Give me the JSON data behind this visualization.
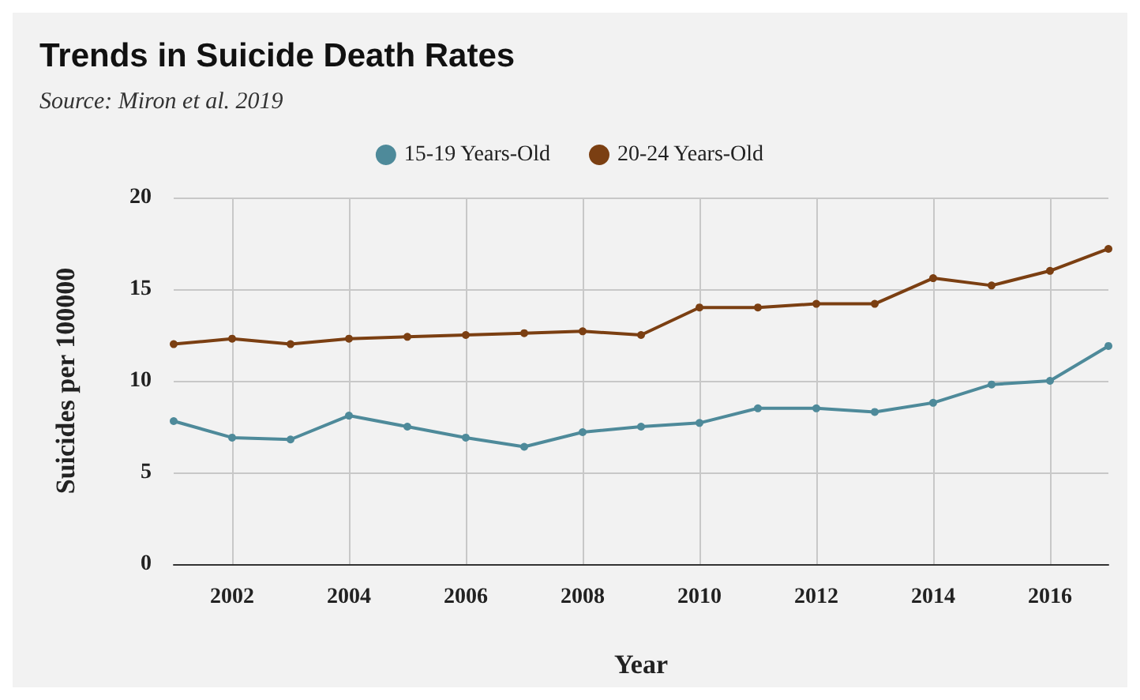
{
  "chart_data": {
    "type": "line",
    "title": "Trends in Suicide Death Rates",
    "subtitle": "Source: Miron et al. 2019",
    "xlabel": "Year",
    "ylabel": "Suicides per 100000",
    "x": [
      2001,
      2002,
      2003,
      2004,
      2005,
      2006,
      2007,
      2008,
      2009,
      2010,
      2011,
      2012,
      2013,
      2014,
      2015,
      2016,
      2017
    ],
    "series": [
      {
        "name": "15-19 Years-Old",
        "color": "#4e8a9a",
        "values": [
          7.8,
          6.9,
          6.8,
          8.1,
          7.5,
          6.9,
          6.4,
          7.2,
          7.5,
          7.7,
          8.5,
          8.5,
          8.3,
          8.8,
          9.8,
          10.0,
          11.9
        ]
      },
      {
        "name": "20-24 Years-Old",
        "color": "#7b3f12",
        "values": [
          12.0,
          12.3,
          12.0,
          12.3,
          12.4,
          12.5,
          12.6,
          12.7,
          12.5,
          14.0,
          14.0,
          14.2,
          14.2,
          15.6,
          15.2,
          16.0,
          17.2
        ]
      }
    ],
    "xlim": [
      2001,
      2017
    ],
    "xticks": [
      2002,
      2004,
      2006,
      2008,
      2010,
      2012,
      2014,
      2016
    ],
    "ylim": [
      0,
      20
    ],
    "yticks": [
      0,
      5,
      10,
      15,
      20
    ],
    "grid": true,
    "legend": "top",
    "marker": "circle",
    "line_style": "solid"
  }
}
